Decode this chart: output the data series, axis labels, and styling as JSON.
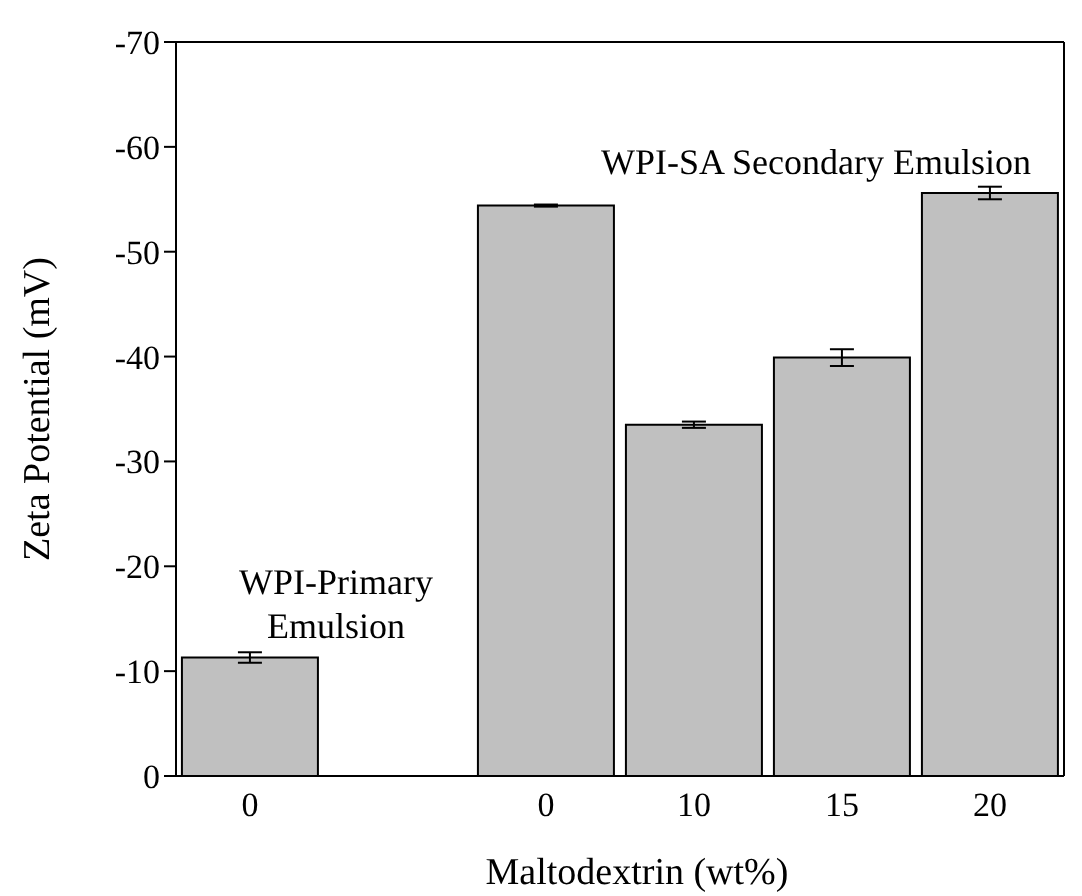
{
  "chart_data": {
    "type": "bar",
    "xlabel": "Maltodextrin (wt%)",
    "ylabel": "Zeta Potential (mV)",
    "categories": [
      "0",
      null,
      "0",
      "10",
      "15",
      "20"
    ],
    "values": [
      -11.3,
      null,
      -54.4,
      -33.5,
      -39.9,
      -55.6
    ],
    "errors": [
      0.5,
      null,
      0.1,
      0.3,
      0.8,
      0.6
    ],
    "color": "#c0c0c0",
    "ylim": [
      0,
      -70
    ],
    "yticks": [
      0,
      -10,
      -20,
      -30,
      -40,
      -50,
      -60,
      -70
    ],
    "annotations": [
      "WPI-Primary Emulsion",
      "WPI-SA Secondary Emulsion"
    ],
    "grid": false,
    "legend": false
  }
}
